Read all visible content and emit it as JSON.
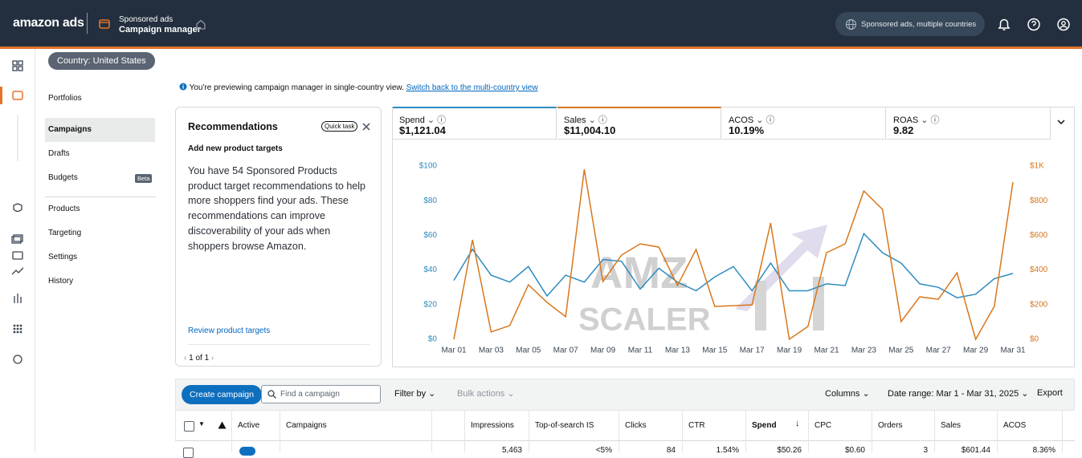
{
  "header": {
    "logo": "amazon ads",
    "product": "Sponsored ads",
    "page": "Campaign manager",
    "account": "Sponsored ads, multiple countries"
  },
  "country": "Country: United States",
  "nav": [
    "Portfolios",
    "Campaigns",
    "Drafts",
    "Budgets",
    "Products",
    "Targeting",
    "Settings",
    "History"
  ],
  "nav_badge": "Beta",
  "banner": {
    "text": "You're previewing campaign manager in single-country view.",
    "link": "Switch back to the multi-country view"
  },
  "recommendation": {
    "title": "Recommendations",
    "tag": "Quick task",
    "subtitle": "Add new product targets",
    "body": "You have 54 Sponsored Products product target recommendations to help more shoppers find your ads. These recommendations can improve discoverability of your ads when shoppers browse Amazon.",
    "link": "Review product targets",
    "pager": "1 of 1"
  },
  "metrics": [
    {
      "value": "$1,121.04"
    },
    {
      "value": "$11,004.10"
    },
    {
      "name": "ACOS",
      "value": "10.19%"
    },
    {
      "name": "ROAS",
      "value": "9.82"
    }
  ],
  "chart_data": {
    "type": "line",
    "categories": [
      "Mar 01",
      null,
      "Mar 03",
      null,
      "Mar 05",
      null,
      "Mar 07",
      null,
      "Mar 09",
      null,
      "Mar 11",
      null,
      "Mar 13",
      null,
      "Mar 15",
      null,
      "Mar 17",
      null,
      "Mar 19",
      null,
      "Mar 21",
      null,
      "Mar 23",
      null,
      "Mar 25",
      null,
      "Mar 27",
      null,
      "Mar 29",
      null,
      "Mar 31"
    ],
    "series": [
      {
        "name": "Spend",
        "color": "#2e8bc0",
        "values": [
          34,
          52,
          37,
          33,
          42,
          25,
          37,
          33,
          46,
          45,
          29,
          41,
          33,
          28,
          36,
          42,
          28,
          44,
          28,
          28,
          32,
          31,
          61,
          50,
          44,
          32,
          30,
          24,
          26,
          35,
          38
        ]
      },
      {
        "name": "Sales",
        "color": "#d9761b",
        "axis": "y2",
        "values": [
          0,
          574,
          42,
          79,
          315,
          213,
          130,
          981,
          333,
          486,
          551,
          532,
          310,
          519,
          190,
          194,
          199,
          671,
          0,
          74,
          500,
          551,
          856,
          750,
          102,
          245,
          231,
          384,
          0,
          190,
          907
        ]
      }
    ],
    "ylim": [
      0,
      100
    ],
    "yticks": [
      {
        "value": 0,
        "label": "$0"
      },
      {
        "value": 20,
        "label": "$20"
      },
      {
        "value": 40,
        "label": "$40"
      },
      {
        "value": 60,
        "label": "$60"
      },
      {
        "value": 80,
        "label": "$80"
      },
      {
        "value": 100,
        "label": "$100"
      }
    ],
    "y2lim": [
      0,
      1000
    ],
    "y2ticks": [
      {
        "value": 0,
        "label": "$0"
      },
      {
        "value": 200,
        "label": "$200"
      },
      {
        "value": 400,
        "label": "$400"
      },
      {
        "value": 600,
        "label": "$600"
      },
      {
        "value": 800,
        "label": "$800"
      },
      {
        "value": 1000,
        "label": "$1K"
      }
    ],
    "grid": false
  },
  "watermark": [
    "AMZ",
    "SCALER"
  ],
  "toolbar": {
    "create": "Create campaign",
    "search": "Find a campaign",
    "filter": "Filter by",
    "bulk": "Bulk actions",
    "columns": "Columns",
    "date_range": "Date range: Mar 1 - Mar 31, 2025",
    "export": "Export"
  },
  "table": {
    "columns": [
      "Active",
      "Campaigns",
      "Impressions",
      "Top-of-search IS",
      "Clicks",
      "CTR",
      "Spend",
      "CPC",
      "Orders",
      "Sales",
      "ACOS"
    ],
    "rows": [
      [
        "5,463",
        "<5%",
        "84",
        "1.54%",
        "$50.26",
        "$0.60",
        "3",
        "$601.44",
        "8.36%"
      ]
    ]
  }
}
